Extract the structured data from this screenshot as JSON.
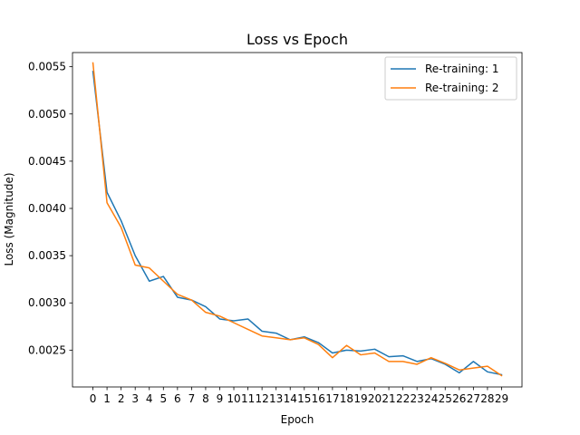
{
  "chart_data": {
    "type": "line",
    "title": "Loss vs Epoch",
    "xlabel": "Epoch",
    "ylabel": "Loss (Magnitude)",
    "x": [
      0,
      1,
      2,
      3,
      4,
      5,
      6,
      7,
      8,
      9,
      10,
      11,
      12,
      13,
      14,
      15,
      16,
      17,
      18,
      19,
      20,
      21,
      22,
      23,
      24,
      25,
      26,
      27,
      28,
      29
    ],
    "xlim": [
      -1.45,
      30.45
    ],
    "ylim": [
      0.00211,
      0.00565
    ],
    "yticks": [
      0.0025,
      0.003,
      0.0035,
      0.004,
      0.0045,
      0.005,
      0.0055
    ],
    "ytick_labels": [
      "0.0025",
      "0.0030",
      "0.0035",
      "0.0040",
      "0.0045",
      "0.0050",
      "0.0055"
    ],
    "xtick_labels": [
      "0",
      "1",
      "2",
      "3",
      "4",
      "5",
      "6",
      "7",
      "8",
      "9",
      "10",
      "11",
      "12",
      "13",
      "14",
      "15",
      "16",
      "17",
      "18",
      "19",
      "20",
      "21",
      "22",
      "23",
      "24",
      "25",
      "26",
      "27",
      "28",
      "29"
    ],
    "grid": false,
    "legend_position": "top-right",
    "series": [
      {
        "name": "Re-training: 1",
        "color": "#1f77b4",
        "values": [
          0.00545,
          0.00417,
          0.00387,
          0.0035,
          0.00323,
          0.00328,
          0.00306,
          0.00303,
          0.00296,
          0.00283,
          0.00281,
          0.00283,
          0.0027,
          0.00268,
          0.00261,
          0.00264,
          0.00258,
          0.00247,
          0.0025,
          0.00249,
          0.00251,
          0.00243,
          0.00244,
          0.00238,
          0.00241,
          0.00235,
          0.00226,
          0.00238,
          0.00227,
          0.00224
        ]
      },
      {
        "name": "Re-training: 2",
        "color": "#ff7f0e",
        "values": [
          0.00554,
          0.00406,
          0.0038,
          0.0034,
          0.00337,
          0.00323,
          0.00309,
          0.00303,
          0.0029,
          0.00286,
          0.00279,
          0.00272,
          0.00265,
          0.00263,
          0.00261,
          0.00263,
          0.00256,
          0.00242,
          0.00255,
          0.00245,
          0.00247,
          0.00238,
          0.00238,
          0.00235,
          0.00242,
          0.00236,
          0.00229,
          0.00231,
          0.00233,
          0.00223
        ]
      }
    ]
  }
}
